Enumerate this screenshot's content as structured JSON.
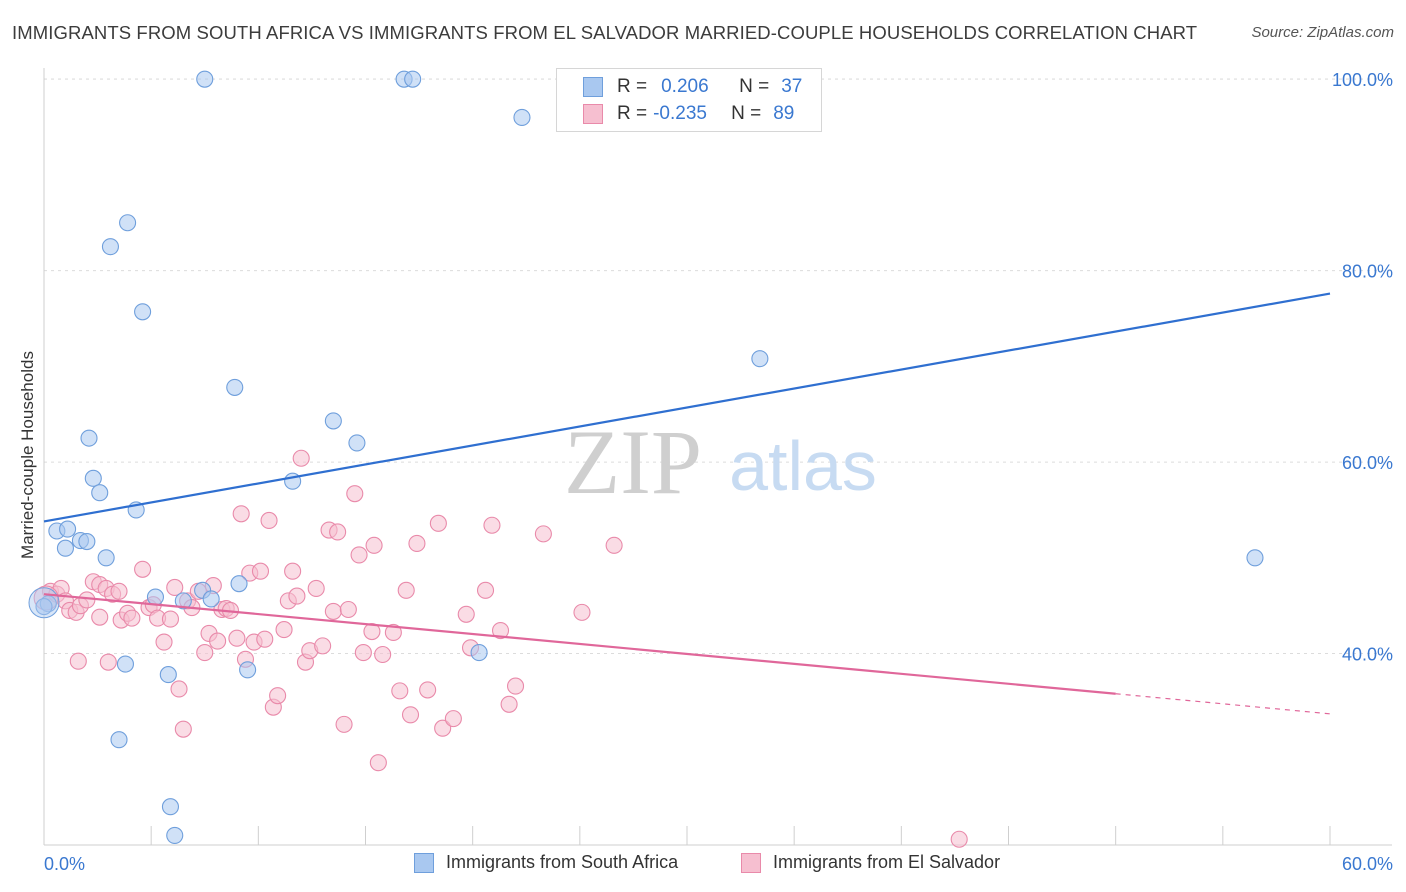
{
  "title": "IMMIGRANTS FROM SOUTH AFRICA VS IMMIGRANTS FROM EL SALVADOR MARRIED-COUPLE HOUSEHOLDS CORRELATION CHART",
  "source": "Source: ZipAtlas.com",
  "watermark": {
    "zip": "ZIP",
    "atlas": "atlas"
  },
  "legend": {
    "series1": {
      "r_label": "R =",
      "r_value": "0.206",
      "n_label": "N =",
      "n_value": "37"
    },
    "series2": {
      "r_label": "R =",
      "r_value": "-0.235",
      "n_label": "N =",
      "n_value": "89"
    }
  },
  "bottom_legend": {
    "series1": "Immigrants from South Africa",
    "series2": "Immigrants from El Salvador"
  },
  "colors": {
    "series1_fill": "#a9c8f0",
    "series1_stroke": "#6f9fdc",
    "series1_line": "#2f6fd0",
    "series2_fill": "#f6bfd0",
    "series2_stroke": "#e98aaa",
    "series2_line": "#e0679a",
    "tick_label": "#3a78d0",
    "grid": "#dcdcdc"
  },
  "chart_data": {
    "type": "scatter",
    "title": "IMMIGRANTS FROM SOUTH AFRICA VS IMMIGRANTS FROM EL SALVADOR MARRIED-COUPLE HOUSEHOLDS CORRELATION CHART",
    "xlabel": "",
    "ylabel": "Married-couple Households",
    "xlim": [
      0,
      60
    ],
    "ylim": [
      20,
      102
    ],
    "x_tick_labels": [
      "0.0%",
      "60.0%"
    ],
    "y_ticks": [
      40,
      60,
      80,
      100
    ],
    "y_tick_labels": [
      "40.0%",
      "60.0%",
      "80.0%",
      "100.0%"
    ],
    "grid": true,
    "legend_position": "top-center",
    "series": [
      {
        "name": "Immigrants from South Africa",
        "R": 0.206,
        "N": 37,
        "trend": {
          "x": [
            0,
            60
          ],
          "y": [
            53.8,
            77.6
          ]
        },
        "points": [
          [
            7.5,
            100
          ],
          [
            16.8,
            100
          ],
          [
            17.2,
            100
          ],
          [
            22.3,
            96
          ],
          [
            3.9,
            85
          ],
          [
            3.1,
            82.5
          ],
          [
            4.6,
            75.7
          ],
          [
            8.9,
            67.8
          ],
          [
            33.4,
            70.8
          ],
          [
            2.1,
            62.5
          ],
          [
            13.5,
            64.3
          ],
          [
            14.6,
            62
          ],
          [
            2.3,
            58.3
          ],
          [
            11.6,
            58
          ],
          [
            2.6,
            56.8
          ],
          [
            4.3,
            55
          ],
          [
            0.6,
            52.8
          ],
          [
            1.1,
            53
          ],
          [
            1.7,
            51.8
          ],
          [
            2.0,
            51.7
          ],
          [
            1.0,
            51
          ],
          [
            2.9,
            50
          ],
          [
            56.5,
            50
          ],
          [
            9.1,
            47.3
          ],
          [
            7.4,
            46.6
          ],
          [
            5.2,
            45.9
          ],
          [
            6.5,
            45.5
          ],
          [
            7.8,
            45.7
          ],
          [
            0.2,
            45.2
          ],
          [
            0.0,
            44.9
          ],
          [
            3.8,
            38.9
          ],
          [
            9.5,
            38.3
          ],
          [
            5.8,
            37.8
          ],
          [
            20.3,
            40.1
          ],
          [
            3.5,
            31
          ],
          [
            5.9,
            24
          ],
          [
            6.1,
            21
          ]
        ]
      },
      {
        "name": "Immigrants from El Salvador",
        "R": -0.235,
        "N": 89,
        "trend": {
          "x": [
            0,
            50
          ],
          "y": [
            46.2,
            35.8
          ]
        },
        "trend_dashed": {
          "x": [
            50,
            60
          ],
          "y": [
            35.8,
            33.7
          ]
        },
        "points": [
          [
            0.3,
            46.5
          ],
          [
            0.6,
            46.2
          ],
          [
            0.8,
            46.8
          ],
          [
            1.0,
            45.5
          ],
          [
            1.2,
            44.5
          ],
          [
            1.5,
            44.3
          ],
          [
            1.7,
            45
          ],
          [
            2.0,
            45.6
          ],
          [
            2.3,
            47.5
          ],
          [
            2.6,
            47.2
          ],
          [
            2.9,
            46.8
          ],
          [
            3.2,
            46.2
          ],
          [
            3.5,
            46.5
          ],
          [
            1.6,
            39.2
          ],
          [
            2.6,
            43.8
          ],
          [
            3.0,
            39.1
          ],
          [
            3.6,
            43.5
          ],
          [
            3.9,
            44.2
          ],
          [
            4.1,
            43.7
          ],
          [
            4.6,
            48.8
          ],
          [
            4.9,
            44.8
          ],
          [
            5.1,
            45.1
          ],
          [
            5.3,
            43.7
          ],
          [
            5.6,
            41.2
          ],
          [
            5.9,
            43.6
          ],
          [
            6.1,
            46.9
          ],
          [
            6.3,
            36.3
          ],
          [
            6.5,
            32.1
          ],
          [
            6.7,
            45.5
          ],
          [
            6.9,
            44.8
          ],
          [
            7.2,
            46.5
          ],
          [
            7.5,
            40.1
          ],
          [
            7.7,
            42.1
          ],
          [
            7.9,
            47.1
          ],
          [
            8.1,
            41.3
          ],
          [
            8.3,
            44.6
          ],
          [
            8.5,
            44.7
          ],
          [
            8.7,
            44.5
          ],
          [
            9.0,
            41.6
          ],
          [
            9.2,
            54.6
          ],
          [
            9.4,
            39.4
          ],
          [
            9.6,
            48.4
          ],
          [
            9.8,
            41.2
          ],
          [
            10.1,
            48.6
          ],
          [
            10.3,
            41.5
          ],
          [
            10.5,
            53.9
          ],
          [
            10.7,
            34.4
          ],
          [
            10.9,
            35.6
          ],
          [
            11.2,
            42.5
          ],
          [
            11.4,
            45.5
          ],
          [
            11.6,
            48.6
          ],
          [
            11.8,
            46
          ],
          [
            12.0,
            60.4
          ],
          [
            12.2,
            39.1
          ],
          [
            12.4,
            40.3
          ],
          [
            12.7,
            46.8
          ],
          [
            13.0,
            40.8
          ],
          [
            13.3,
            52.9
          ],
          [
            13.5,
            44.4
          ],
          [
            13.7,
            52.7
          ],
          [
            14.0,
            32.6
          ],
          [
            14.2,
            44.6
          ],
          [
            14.5,
            56.7
          ],
          [
            14.7,
            50.3
          ],
          [
            14.9,
            40.1
          ],
          [
            15.3,
            42.3
          ],
          [
            15.4,
            51.3
          ],
          [
            15.6,
            28.6
          ],
          [
            15.8,
            39.9
          ],
          [
            16.3,
            42.2
          ],
          [
            16.6,
            36.1
          ],
          [
            16.9,
            46.6
          ],
          [
            17.1,
            33.6
          ],
          [
            17.4,
            51.5
          ],
          [
            17.9,
            36.2
          ],
          [
            18.4,
            53.6
          ],
          [
            18.6,
            32.2
          ],
          [
            19.1,
            33.2
          ],
          [
            19.7,
            44.1
          ],
          [
            19.9,
            40.6
          ],
          [
            20.6,
            46.6
          ],
          [
            20.9,
            53.4
          ],
          [
            21.3,
            42.4
          ],
          [
            21.7,
            34.7
          ],
          [
            22.0,
            36.6
          ],
          [
            23.3,
            52.5
          ],
          [
            25.1,
            44.3
          ],
          [
            26.6,
            51.3
          ],
          [
            42.7,
            20.6
          ]
        ]
      }
    ]
  }
}
